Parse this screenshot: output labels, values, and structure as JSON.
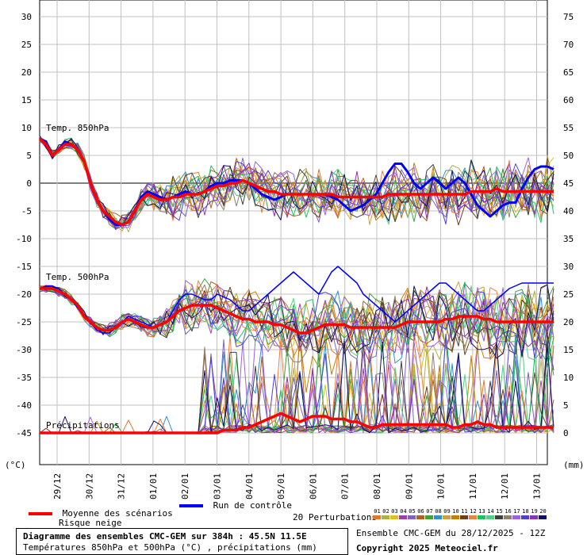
{
  "chart_data": {
    "type": "line",
    "x_labels": [
      "29/12",
      "30/12",
      "31/12",
      "01/01",
      "02/01",
      "03/01",
      "04/01",
      "05/01",
      "06/01",
      "07/01",
      "08/01",
      "09/01",
      "10/01",
      "11/01",
      "12/01",
      "13/01"
    ],
    "left_axis": {
      "unit": "(°C)",
      "ticks": [
        30,
        25,
        20,
        15,
        10,
        5,
        0,
        -5,
        -10,
        -15,
        -20,
        -25,
        -30,
        -35,
        -40,
        -45
      ],
      "ylim": [
        -50,
        32
      ]
    },
    "right_axis": {
      "unit": "(mm)",
      "ticks": [
        75,
        70,
        65,
        60,
        55,
        50,
        45,
        40,
        35,
        30,
        25,
        20,
        15,
        10,
        5,
        0
      ]
    },
    "grid": true,
    "panels": [
      {
        "label": "Temp. 850hPa",
        "mean": [
          8,
          7,
          5,
          6,
          7,
          7,
          6,
          4,
          0,
          -3,
          -5,
          -6,
          -7,
          -7.5,
          -7,
          -5,
          -3,
          -2,
          -2.5,
          -3,
          -3,
          -2.5,
          -2.5,
          -2,
          -2,
          -2,
          -1.5,
          -1,
          -0.5,
          -0.5,
          0,
          0,
          0.5,
          0,
          -0.5,
          -1,
          -1.5,
          -1.5,
          -2,
          -2,
          -2,
          -2,
          -2,
          -2,
          -2,
          -2,
          -2,
          -2.5,
          -2.5,
          -2.5,
          -2.5,
          -2.5,
          -2.5,
          -2.5,
          -2.5,
          -2,
          -2,
          -2,
          -2,
          -2,
          -2,
          -2,
          -2,
          -2,
          -2,
          -2,
          -2,
          -2,
          -1.5,
          -1.5,
          -1.5,
          -1.5,
          -1,
          -1.5,
          -1.5,
          -1.5,
          -1.5,
          -1.5,
          -1.5,
          -1.5,
          -1.5,
          -1.5
        ],
        "control": [
          8,
          7.5,
          5,
          6,
          7.5,
          7,
          6,
          4,
          0,
          -3,
          -5,
          -6.5,
          -7.5,
          -7.5,
          -7,
          -5,
          -2.5,
          -1.5,
          -2,
          -2.5,
          -3,
          -2.5,
          -2,
          -1.5,
          -2,
          -2,
          -1.5,
          -0.5,
          0,
          0,
          0.5,
          0.5,
          0.5,
          0,
          -1,
          -2,
          -2.5,
          -3,
          -2.5,
          -2,
          -2,
          -2,
          -2,
          -2,
          -2,
          -2,
          -2.5,
          -3,
          -4,
          -5,
          -4.5,
          -4,
          -3,
          -2,
          0,
          2,
          3.5,
          3.5,
          2,
          0,
          -1,
          0,
          1,
          0,
          -1,
          0,
          1,
          0,
          -2,
          -4,
          -5,
          -6,
          -5,
          -4,
          -3.5,
          -3.5,
          -1,
          1,
          2.5,
          3,
          3,
          2.5
        ]
      },
      {
        "label": "Temp. 500hPa",
        "mean": [
          -19,
          -19,
          -19,
          -19.5,
          -20,
          -21,
          -22,
          -24,
          -25,
          -26,
          -26.5,
          -26.5,
          -26,
          -25,
          -24.5,
          -25,
          -25.5,
          -26,
          -26,
          -25.5,
          -25,
          -24,
          -23,
          -22.5,
          -22,
          -22,
          -22,
          -22,
          -22.5,
          -23,
          -23.5,
          -24,
          -24.5,
          -24.5,
          -25,
          -25,
          -25,
          -25.5,
          -25.5,
          -26,
          -26.5,
          -27,
          -27,
          -26.5,
          -26,
          -25.5,
          -25.5,
          -25.5,
          -25.5,
          -26,
          -26,
          -26,
          -26,
          -26,
          -26,
          -26,
          -26,
          -25.5,
          -25,
          -25,
          -25,
          -25,
          -25,
          -25,
          -24.5,
          -24.5,
          -24,
          -24,
          -24,
          -24,
          -24.5,
          -24.5,
          -25,
          -25,
          -25,
          -25,
          -25,
          -25,
          -25,
          -25,
          -25,
          -25
        ],
        "control": [
          -19,
          -18.5,
          -18.5,
          -19,
          -20,
          -21,
          -22.5,
          -24,
          -25,
          -26.5,
          -27,
          -27,
          -26,
          -25,
          -24,
          -24.5,
          -25,
          -25.5,
          -26,
          -25.5,
          -25,
          -23,
          -21,
          -20,
          -20,
          -20.5,
          -21,
          -21,
          -20,
          -20.5,
          -21,
          -22,
          -23,
          -23,
          -22,
          -21,
          -20,
          -19,
          -18,
          -17,
          -16,
          -17,
          -18,
          -19,
          -20,
          -18,
          -16,
          -15,
          -16,
          -17,
          -18,
          -20,
          -21,
          -22,
          -23,
          -24,
          -25,
          -24,
          -23,
          -22,
          -21,
          -20,
          -19,
          -18,
          -18,
          -19,
          -20,
          -21,
          -22,
          -23,
          -23,
          -22,
          -21,
          -20,
          -19,
          -18.5,
          -18,
          -18,
          -18,
          -18,
          -18,
          -18
        ]
      },
      {
        "label": "Précipitations",
        "unit_axis": "right",
        "mean": [
          0,
          0,
          0,
          0,
          0,
          0,
          0,
          0,
          0,
          0,
          0,
          0,
          0,
          0,
          0,
          0,
          0,
          0,
          0,
          0,
          0,
          0,
          0,
          0,
          0,
          0,
          0,
          0,
          0,
          0.5,
          0.5,
          0.5,
          1,
          1,
          1.5,
          2,
          2.5,
          3,
          3.5,
          3,
          2.5,
          2,
          2.5,
          3,
          3,
          3,
          2.5,
          2.5,
          2.5,
          2,
          2,
          1.5,
          1,
          1,
          1.5,
          1.5,
          1.5,
          1.5,
          1.5,
          1.5,
          1.5,
          1.5,
          1.5,
          1.5,
          1.5,
          1,
          1,
          1.5,
          1.5,
          2,
          1.5,
          1.5,
          1,
          1,
          1,
          1,
          1,
          1,
          1,
          1,
          1,
          1
        ]
      }
    ],
    "series_legend": {
      "mean": "Moyenne des scénarios",
      "snow": "Risque neige",
      "control": "Run de contrôle",
      "perturbations": "20 Perturbations"
    },
    "perturbation_numbers": [
      "01",
      "02",
      "03",
      "04",
      "05",
      "06",
      "07",
      "08",
      "09",
      "10",
      "11",
      "12",
      "13",
      "14",
      "15",
      "16",
      "17",
      "18",
      "19",
      "20"
    ],
    "perturbation_colors": [
      "#e07830",
      "#b0b040",
      "#e0c020",
      "#a040a0",
      "#8060c0",
      "#b06020",
      "#40a040",
      "#3090d0",
      "#d0a040",
      "#c08000",
      "#6a4020",
      "#f08040",
      "#20c060",
      "#50d080",
      "#404040",
      "#908070",
      "#a060e0",
      "#5040d0",
      "#9030b0",
      "#101060"
    ],
    "colors": {
      "mean": "#ff0000",
      "control": "#0000ff",
      "grid": "#c0c0c0",
      "zero_line": "#808080"
    },
    "title": "Diagramme des ensembles CMC-GEM sur 384h : 45.5N 11.5E",
    "subtitle": "Températures 850hPa et 500hPa (°C) , précipitations (mm)",
    "run_label": "Ensemble CMC-GEM du 28/12/2025 - 12Z",
    "copyright": "Copyright 2025 Meteociel.fr"
  }
}
